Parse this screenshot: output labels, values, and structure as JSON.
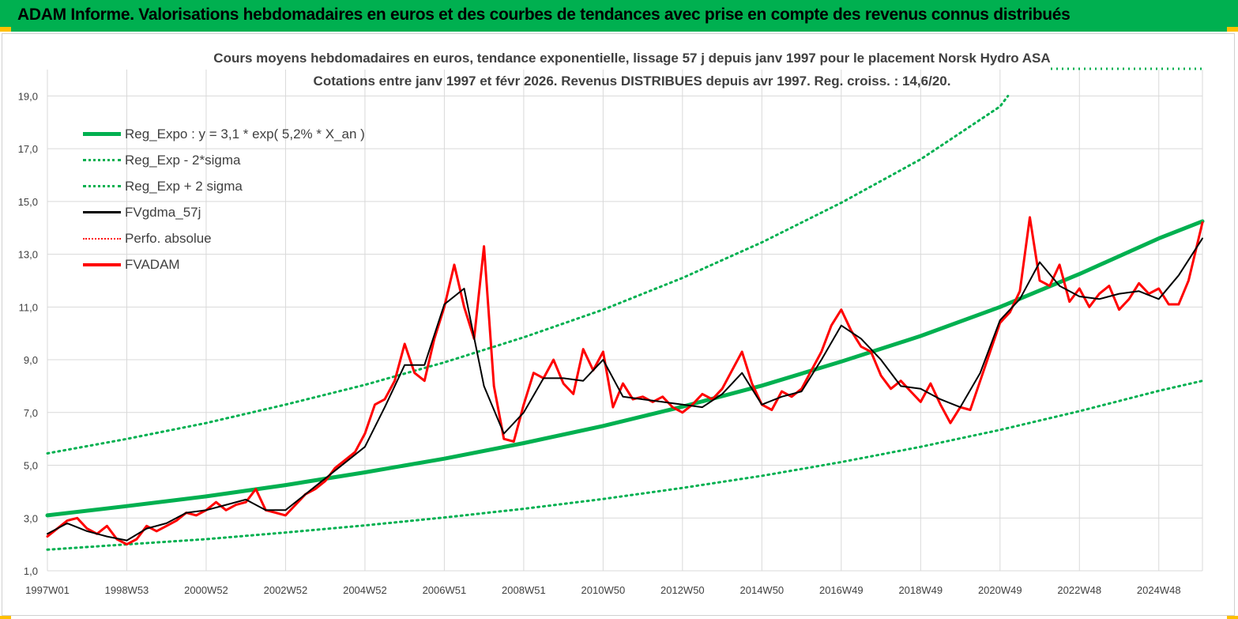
{
  "header": {
    "title": "ADAM Informe. Valorisations hebdomadaires en euros et des courbes de tendances avec prise en compte des revenus connus distribués"
  },
  "colors": {
    "header_bg": "#00b050",
    "accent": "#ffc000",
    "trend": "#00b050",
    "price": "#ff0000",
    "smooth": "#000000",
    "grid": "#d9d9d9",
    "text": "#404040"
  },
  "chart_data": {
    "type": "line",
    "title": "Cours moyens hebdomadaires en euros, tendance exponentielle, lissage 57 j depuis janv 1997 pour le placement Norsk Hydro ASA",
    "subtitle": "Cotations entre janv 1997 et févr 2026. Revenus DISTRIBUES depuis avr 1997. Reg. croiss. : 14,6/20.",
    "xlabel": "",
    "ylabel": "",
    "x_range": [
      1997.0,
      2026.1
    ],
    "ylim": [
      1.0,
      20.0
    ],
    "y_ticks": [
      "1,0",
      "3,0",
      "5,0",
      "7,0",
      "9,0",
      "11,0",
      "13,0",
      "15,0",
      "17,0",
      "19,0"
    ],
    "y_tick_values": [
      1,
      3,
      5,
      7,
      9,
      11,
      13,
      15,
      17,
      19
    ],
    "x_tick_labels": [
      "1997W01",
      "1998W53",
      "2000W52",
      "2002W52",
      "2004W52",
      "2006W51",
      "2008W51",
      "2010W50",
      "2012W50",
      "2014W50",
      "2016W49",
      "2018W49",
      "2020W49",
      "2022W48",
      "2024W48"
    ],
    "x_tick_values": [
      1997,
      1999,
      2001,
      2003,
      2005,
      2007,
      2009,
      2011,
      2013,
      2015,
      2017,
      2019,
      2021,
      2023,
      2025
    ],
    "grid": true,
    "legend_position": "top-left",
    "legend": [
      "Reg_Expo : y = 3,1 * exp( 5,2% *  X_an )",
      "Reg_Exp - 2*sigma",
      "Reg_Exp + 2 sigma",
      "FVgdma_57j",
      "Perfo. absolue",
      "FVADAM"
    ],
    "series": [
      {
        "name": "Reg_Expo : y = 3,1 * exp( 5,2% *  X_an )",
        "style": "solid-thick",
        "x": [
          1997,
          1999,
          2001,
          2003,
          2005,
          2007,
          2009,
          2011,
          2013,
          2015,
          2017,
          2019,
          2021,
          2023,
          2025,
          2026.1
        ],
        "values": [
          3.1,
          3.45,
          3.82,
          4.25,
          4.73,
          5.25,
          5.84,
          6.49,
          7.22,
          8.02,
          8.93,
          9.9,
          11.0,
          12.25,
          13.6,
          14.25
        ]
      },
      {
        "name": "Reg_Exp - 2*sigma",
        "style": "dotted",
        "x": [
          1997,
          1999,
          2001,
          2003,
          2005,
          2007,
          2009,
          2011,
          2013,
          2015,
          2017,
          2019,
          2021,
          2023,
          2025,
          2026.1
        ],
        "values": [
          1.8,
          2.0,
          2.2,
          2.45,
          2.72,
          3.02,
          3.35,
          3.72,
          4.14,
          4.6,
          5.12,
          5.7,
          6.34,
          7.05,
          7.82,
          8.2
        ]
      },
      {
        "name": "Reg_Exp + 2 sigma",
        "style": "dotted",
        "x": [
          1997,
          1999,
          2001,
          2003,
          2005,
          2007,
          2009,
          2011,
          2013,
          2015,
          2017,
          2019,
          2021,
          2021.2
        ],
        "values": [
          5.45,
          6.0,
          6.6,
          7.3,
          8.05,
          8.9,
          9.85,
          10.9,
          12.1,
          13.45,
          14.95,
          16.6,
          18.6,
          19.0
        ]
      },
      {
        "name": "FVgdma_57j",
        "style": "solid",
        "x": [
          1997.0,
          1997.5,
          1998.0,
          1998.5,
          1999.0,
          1999.5,
          2000.0,
          2000.5,
          2001.0,
          2001.5,
          2002.0,
          2002.5,
          2003.0,
          2003.5,
          2004.0,
          2004.5,
          2005.0,
          2005.5,
          2006.0,
          2006.5,
          2007.0,
          2007.5,
          2008.0,
          2008.5,
          2009.0,
          2009.5,
          2010.0,
          2010.5,
          2011.0,
          2011.5,
          2012.0,
          2012.5,
          2013.0,
          2013.5,
          2014.0,
          2014.5,
          2015.0,
          2015.5,
          2016.0,
          2016.5,
          2017.0,
          2017.5,
          2018.0,
          2018.5,
          2019.0,
          2019.5,
          2020.0,
          2020.5,
          2021.0,
          2021.5,
          2022.0,
          2022.5,
          2023.0,
          2023.5,
          2024.0,
          2024.5,
          2025.0,
          2025.5,
          2026.1
        ],
        "values": [
          2.4,
          2.8,
          2.5,
          2.3,
          2.15,
          2.6,
          2.8,
          3.2,
          3.3,
          3.5,
          3.7,
          3.3,
          3.3,
          3.9,
          4.5,
          5.1,
          5.7,
          7.2,
          8.8,
          8.8,
          11.1,
          11.7,
          8.0,
          6.2,
          7.0,
          8.3,
          8.3,
          8.2,
          9.0,
          7.6,
          7.5,
          7.4,
          7.3,
          7.2,
          7.7,
          8.5,
          7.3,
          7.6,
          7.8,
          9.0,
          10.3,
          9.8,
          9.0,
          8.0,
          7.9,
          7.5,
          7.2,
          8.5,
          10.5,
          11.3,
          12.7,
          11.8,
          11.4,
          11.3,
          11.5,
          11.6,
          11.3,
          12.2,
          13.6
        ]
      },
      {
        "name": "Perfo. absolue",
        "style": "dotted-thin",
        "x": [],
        "values": []
      },
      {
        "name": "FVADAM",
        "style": "solid-thick",
        "x": [
          1997.0,
          1997.25,
          1997.5,
          1997.75,
          1998.0,
          1998.25,
          1998.5,
          1998.75,
          1999.0,
          1999.25,
          1999.5,
          1999.75,
          2000.0,
          2000.25,
          2000.5,
          2000.75,
          2001.0,
          2001.25,
          2001.5,
          2001.75,
          2002.0,
          2002.25,
          2002.5,
          2002.75,
          2003.0,
          2003.25,
          2003.5,
          2003.75,
          2004.0,
          2004.25,
          2004.5,
          2004.75,
          2005.0,
          2005.25,
          2005.5,
          2005.75,
          2006.0,
          2006.25,
          2006.5,
          2006.75,
          2007.0,
          2007.25,
          2007.5,
          2007.75,
          2008.0,
          2008.25,
          2008.5,
          2008.75,
          2009.0,
          2009.25,
          2009.5,
          2009.75,
          2010.0,
          2010.25,
          2010.5,
          2010.75,
          2011.0,
          2011.25,
          2011.5,
          2011.75,
          2012.0,
          2012.25,
          2012.5,
          2012.75,
          2013.0,
          2013.25,
          2013.5,
          2013.75,
          2014.0,
          2014.25,
          2014.5,
          2014.75,
          2015.0,
          2015.25,
          2015.5,
          2015.75,
          2016.0,
          2016.25,
          2016.5,
          2016.75,
          2017.0,
          2017.25,
          2017.5,
          2017.75,
          2018.0,
          2018.25,
          2018.5,
          2018.75,
          2019.0,
          2019.25,
          2019.5,
          2019.75,
          2020.0,
          2020.25,
          2020.5,
          2020.75,
          2021.0,
          2021.25,
          2021.5,
          2021.75,
          2022.0,
          2022.25,
          2022.5,
          2022.75,
          2023.0,
          2023.25,
          2023.5,
          2023.75,
          2024.0,
          2024.25,
          2024.5,
          2024.75,
          2025.0,
          2025.25,
          2025.5,
          2025.75,
          2026.1
        ],
        "values": [
          2.3,
          2.6,
          2.9,
          3.0,
          2.6,
          2.4,
          2.7,
          2.2,
          2.0,
          2.2,
          2.7,
          2.5,
          2.7,
          2.9,
          3.2,
          3.1,
          3.3,
          3.6,
          3.3,
          3.5,
          3.6,
          4.1,
          3.3,
          3.2,
          3.1,
          3.5,
          3.9,
          4.1,
          4.4,
          4.9,
          5.2,
          5.5,
          6.2,
          7.3,
          7.5,
          8.2,
          9.6,
          8.5,
          8.2,
          9.8,
          11.0,
          12.6,
          11.0,
          9.8,
          13.3,
          8.0,
          6.0,
          5.9,
          7.3,
          8.5,
          8.3,
          9.0,
          8.1,
          7.7,
          9.4,
          8.6,
          9.3,
          7.2,
          8.1,
          7.5,
          7.6,
          7.4,
          7.6,
          7.2,
          7.0,
          7.3,
          7.7,
          7.5,
          7.9,
          8.6,
          9.3,
          8.1,
          7.3,
          7.1,
          7.8,
          7.6,
          7.9,
          8.6,
          9.3,
          10.3,
          10.9,
          10.1,
          9.5,
          9.3,
          8.4,
          7.9,
          8.2,
          7.8,
          7.4,
          8.1,
          7.3,
          6.6,
          7.2,
          7.1,
          8.2,
          9.3,
          10.4,
          10.8,
          11.6,
          14.4,
          12.0,
          11.8,
          12.6,
          11.2,
          11.7,
          11.0,
          11.5,
          11.8,
          10.9,
          11.3,
          11.9,
          11.5,
          11.7,
          11.1,
          11.1,
          12.0,
          14.2
        ]
      }
    ]
  }
}
